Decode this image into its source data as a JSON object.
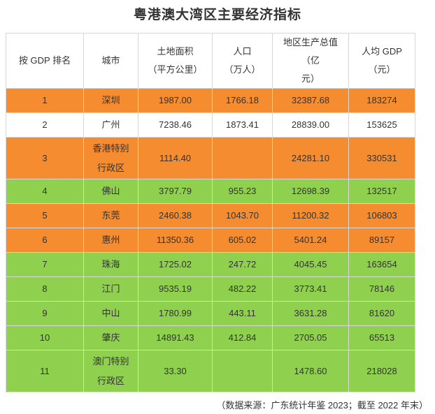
{
  "title": "粤港澳大湾区主要经济指标",
  "colors": {
    "orange": "#f58c2f",
    "green": "#8fd14f",
    "white": "#ffffff"
  },
  "table": {
    "headers": [
      "按 GDP 排名",
      "城市",
      "土地面积（平方公里）",
      "人口（万人）",
      "地区生产总值（亿元）",
      "人均 GDP（元）"
    ],
    "header_lines": [
      [
        "按 GDP 排名"
      ],
      [
        "城市"
      ],
      [
        "土地面积",
        "（平方公里）"
      ],
      [
        "人口",
        "（万人）"
      ],
      [
        "地区生产总值（亿",
        "元）"
      ],
      [
        "人均 GDP",
        "（元）"
      ]
    ],
    "rows": [
      {
        "color": "orange",
        "cells": [
          "1",
          "深圳",
          "1987.00",
          "1766.18",
          "32387.68",
          "183274"
        ]
      },
      {
        "color": "white",
        "cells": [
          "2",
          "广州",
          "7238.46",
          "1873.41",
          "28839.00",
          "153625"
        ]
      },
      {
        "color": "orange",
        "tall": true,
        "cells": [
          "3",
          "香港特别行政区",
          "1114.40",
          "",
          "24281.10",
          "330531"
        ]
      },
      {
        "color": "green",
        "cells": [
          "4",
          "佛山",
          "3797.79",
          "955.23",
          "12698.39",
          "132517"
        ]
      },
      {
        "color": "orange",
        "cells": [
          "5",
          "东莞",
          "2460.38",
          "1043.70",
          "11200.32",
          "106803"
        ]
      },
      {
        "color": "orange",
        "cells": [
          "6",
          "惠州",
          "11350.36",
          "605.02",
          "5401.24",
          "89157"
        ]
      },
      {
        "color": "green",
        "cells": [
          "7",
          "珠海",
          "1725.02",
          "247.72",
          "4045.45",
          "163654"
        ]
      },
      {
        "color": "green",
        "cells": [
          "8",
          "江门",
          "9535.19",
          "482.22",
          "3773.41",
          "78146"
        ]
      },
      {
        "color": "green",
        "cells": [
          "9",
          "中山",
          "1780.99",
          "443.11",
          "3631.28",
          "81620"
        ]
      },
      {
        "color": "green",
        "cells": [
          "10",
          "肇庆",
          "14891.43",
          "412.84",
          "2705.05",
          "65513"
        ]
      },
      {
        "color": "green",
        "tall": true,
        "cells": [
          "11",
          "澳门特别行政区",
          "33.30",
          "",
          "1478.60",
          "218028"
        ]
      }
    ]
  },
  "footer": "（数据来源：广东统计年鉴 2023；截至 2022 年末）"
}
